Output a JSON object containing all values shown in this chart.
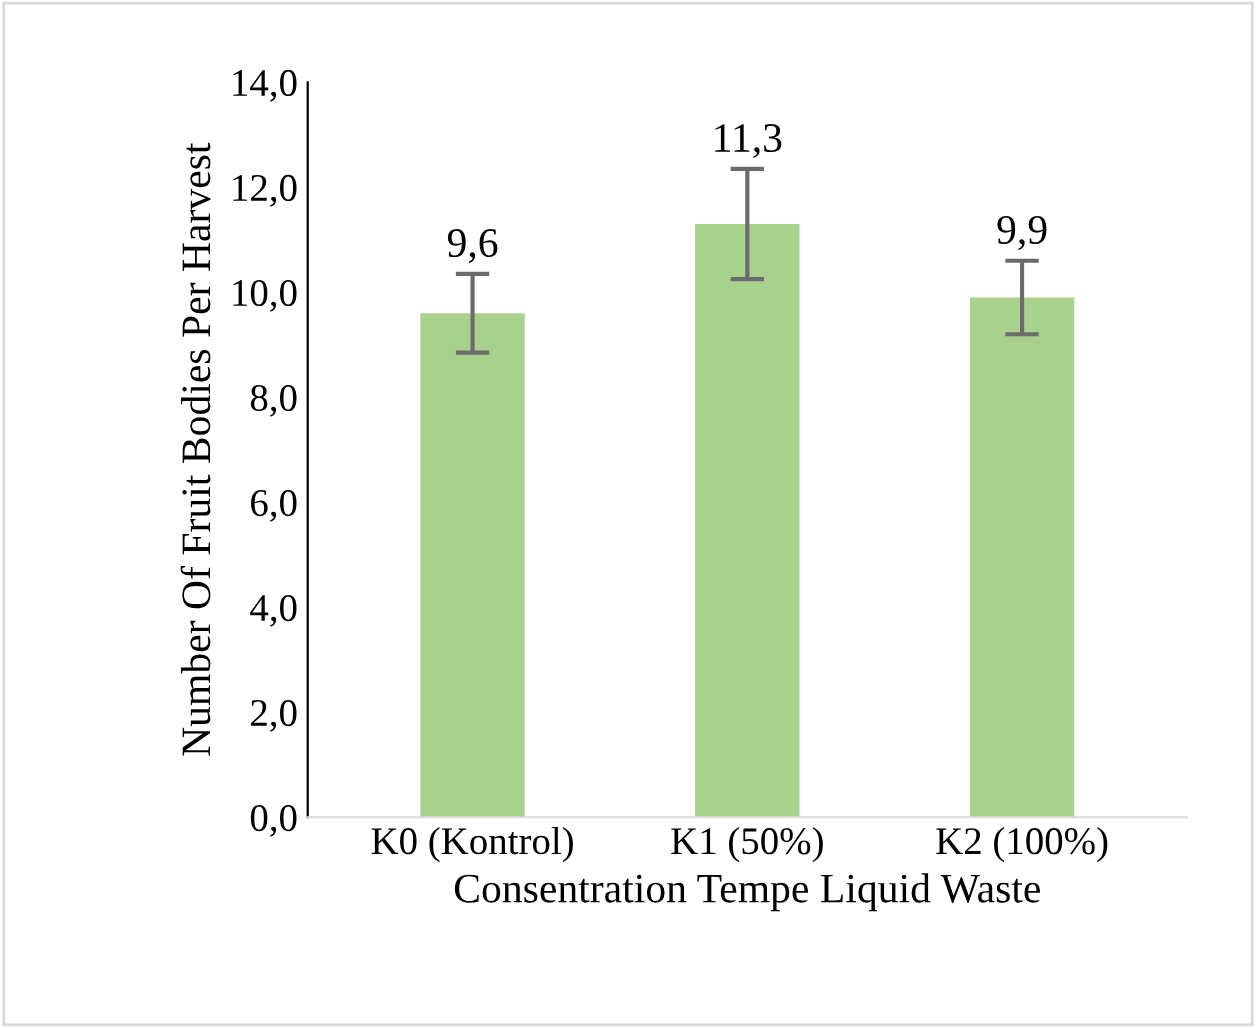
{
  "chart_data": {
    "type": "bar",
    "categories": [
      "K0 (Kontrol)",
      "K1 (50%)",
      "K2 (100%)"
    ],
    "values": [
      9.6,
      11.3,
      9.9
    ],
    "errors": [
      0.75,
      1.05,
      0.7
    ],
    "value_labels": [
      "9,6",
      "11,3",
      "9,9"
    ],
    "color": "#a9d18e",
    "xlabel": "Consentration Tempe Liquid Waste",
    "ylabel": "Number Of Fruit Bodies Per Harvest",
    "ylim": [
      0,
      14
    ],
    "yticks": [
      {
        "value": 0,
        "label": "0,0"
      },
      {
        "value": 2,
        "label": "2,0"
      },
      {
        "value": 4,
        "label": "4,0"
      },
      {
        "value": 6,
        "label": "6,0"
      },
      {
        "value": 8,
        "label": "8,0"
      },
      {
        "value": 10,
        "label": "10,0"
      },
      {
        "value": 12,
        "label": "12,0"
      },
      {
        "value": 14,
        "label": "14,0"
      }
    ],
    "grid": false
  }
}
